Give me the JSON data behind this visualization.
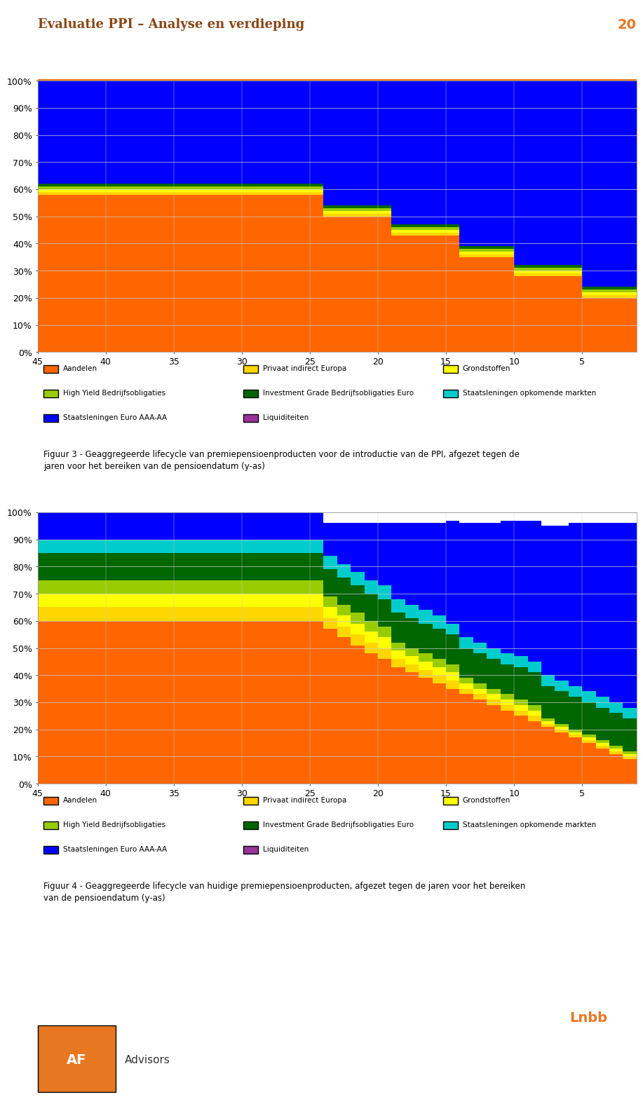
{
  "title": "Evaluatie PPI – Analyse en verdieping",
  "page_num": "20",
  "title_color": "#8B4513",
  "header_line_color": "#E87722",
  "x_values": [
    45,
    44,
    43,
    42,
    41,
    40,
    39,
    38,
    37,
    36,
    35,
    34,
    33,
    32,
    31,
    30,
    29,
    28,
    27,
    26,
    25,
    24,
    23,
    22,
    21,
    20,
    19,
    18,
    17,
    16,
    15,
    14,
    13,
    12,
    11,
    10,
    9,
    8,
    7,
    6,
    5,
    4,
    3,
    2,
    1
  ],
  "series_colors": {
    "Aandelen": "#FF6600",
    "Privaat indirect Europa": "#FFD700",
    "Grondstoffen": "#FFFF00",
    "High Yield Bedrijfsobligaties": "#99CC00",
    "Investment Grade Bedrijfsobligaties Euro": "#006600",
    "Staatsleningen opkomende markten": "#00CCCC",
    "Staatsleningen Euro AAA-AA": "#0000FF",
    "Liquiditeiten": "#993399"
  },
  "chart1": {
    "title": "Figuur 3 - Geaggregeerde lifecycle van premiepensioenproducten voor de introductie van de PPI, afgezet tegen de jaren voor het bereiken van de pensioendatum (y-as)",
    "Aandelen": [
      0.58,
      0.58,
      0.58,
      0.58,
      0.58,
      0.58,
      0.58,
      0.58,
      0.58,
      0.58,
      0.58,
      0.58,
      0.58,
      0.58,
      0.58,
      0.58,
      0.58,
      0.58,
      0.58,
      0.58,
      0.58,
      0.5,
      0.5,
      0.5,
      0.5,
      0.5,
      0.43,
      0.43,
      0.43,
      0.43,
      0.43,
      0.35,
      0.35,
      0.35,
      0.35,
      0.28,
      0.28,
      0.28,
      0.28,
      0.28,
      0.2,
      0.2,
      0.2,
      0.2,
      0.11
    ],
    "Privaat indirect Europa": [
      0.01,
      0.01,
      0.01,
      0.01,
      0.01,
      0.01,
      0.01,
      0.01,
      0.01,
      0.01,
      0.01,
      0.01,
      0.01,
      0.01,
      0.01,
      0.01,
      0.01,
      0.01,
      0.01,
      0.01,
      0.01,
      0.01,
      0.01,
      0.01,
      0.01,
      0.01,
      0.01,
      0.01,
      0.01,
      0.01,
      0.01,
      0.01,
      0.01,
      0.01,
      0.01,
      0.01,
      0.01,
      0.01,
      0.01,
      0.01,
      0.01,
      0.01,
      0.01,
      0.01,
      0.01
    ],
    "Grondstoffen": [
      0.01,
      0.01,
      0.01,
      0.01,
      0.01,
      0.01,
      0.01,
      0.01,
      0.01,
      0.01,
      0.01,
      0.01,
      0.01,
      0.01,
      0.01,
      0.01,
      0.01,
      0.01,
      0.01,
      0.01,
      0.01,
      0.01,
      0.01,
      0.01,
      0.01,
      0.01,
      0.01,
      0.01,
      0.01,
      0.01,
      0.01,
      0.01,
      0.01,
      0.01,
      0.01,
      0.01,
      0.01,
      0.01,
      0.01,
      0.01,
      0.01,
      0.01,
      0.01,
      0.01,
      0.01
    ],
    "High Yield Bedrijfsobligaties": [
      0.01,
      0.01,
      0.01,
      0.01,
      0.01,
      0.01,
      0.01,
      0.01,
      0.01,
      0.01,
      0.01,
      0.01,
      0.01,
      0.01,
      0.01,
      0.01,
      0.01,
      0.01,
      0.01,
      0.01,
      0.01,
      0.01,
      0.01,
      0.01,
      0.01,
      0.01,
      0.01,
      0.01,
      0.01,
      0.01,
      0.01,
      0.01,
      0.01,
      0.01,
      0.01,
      0.01,
      0.01,
      0.01,
      0.01,
      0.01,
      0.01,
      0.01,
      0.01,
      0.01,
      0.01
    ],
    "Investment Grade Bedrijfsobligaties Euro": [
      0.01,
      0.01,
      0.01,
      0.01,
      0.01,
      0.01,
      0.01,
      0.01,
      0.01,
      0.01,
      0.01,
      0.01,
      0.01,
      0.01,
      0.01,
      0.01,
      0.01,
      0.01,
      0.01,
      0.01,
      0.01,
      0.01,
      0.01,
      0.01,
      0.01,
      0.01,
      0.01,
      0.01,
      0.01,
      0.01,
      0.01,
      0.01,
      0.01,
      0.01,
      0.01,
      0.01,
      0.01,
      0.01,
      0.01,
      0.01,
      0.01,
      0.01,
      0.01,
      0.01,
      0.01
    ],
    "Staatsleningen opkomende markten": [
      0.0,
      0.0,
      0.0,
      0.0,
      0.0,
      0.0,
      0.0,
      0.0,
      0.0,
      0.0,
      0.0,
      0.0,
      0.0,
      0.0,
      0.0,
      0.0,
      0.0,
      0.0,
      0.0,
      0.0,
      0.0,
      0.0,
      0.0,
      0.0,
      0.0,
      0.0,
      0.0,
      0.0,
      0.0,
      0.0,
      0.0,
      0.0,
      0.0,
      0.0,
      0.0,
      0.0,
      0.0,
      0.0,
      0.0,
      0.0,
      0.0,
      0.0,
      0.0,
      0.0,
      0.0
    ],
    "Staatsleningen Euro AAA-AA": [
      0.38,
      0.38,
      0.38,
      0.38,
      0.38,
      0.38,
      0.38,
      0.38,
      0.38,
      0.38,
      0.38,
      0.38,
      0.38,
      0.38,
      0.38,
      0.38,
      0.38,
      0.38,
      0.38,
      0.38,
      0.38,
      0.46,
      0.46,
      0.46,
      0.46,
      0.46,
      0.53,
      0.53,
      0.53,
      0.53,
      0.53,
      0.61,
      0.61,
      0.61,
      0.61,
      0.68,
      0.68,
      0.68,
      0.68,
      0.68,
      0.76,
      0.76,
      0.76,
      0.76,
      0.84
    ],
    "Liquiditeiten": [
      0.0,
      0.0,
      0.0,
      0.0,
      0.0,
      0.0,
      0.0,
      0.0,
      0.0,
      0.0,
      0.0,
      0.0,
      0.0,
      0.0,
      0.0,
      0.0,
      0.0,
      0.0,
      0.0,
      0.0,
      0.0,
      0.0,
      0.0,
      0.0,
      0.0,
      0.0,
      0.0,
      0.0,
      0.0,
      0.0,
      0.0,
      0.0,
      0.0,
      0.0,
      0.0,
      0.0,
      0.0,
      0.0,
      0.0,
      0.0,
      0.0,
      0.0,
      0.0,
      0.0,
      0.04
    ]
  },
  "chart2": {
    "title": "Figuur 4 - Geaggregeerde lifecycle van huidige premiepensioenproducten, afgezet tegen de jaren voor het bereiken van de pensioendatum (y-as)",
    "Aandelen": [
      0.6,
      0.6,
      0.6,
      0.6,
      0.6,
      0.6,
      0.6,
      0.6,
      0.6,
      0.6,
      0.6,
      0.6,
      0.6,
      0.6,
      0.6,
      0.6,
      0.6,
      0.6,
      0.6,
      0.6,
      0.6,
      0.57,
      0.54,
      0.51,
      0.48,
      0.46,
      0.43,
      0.41,
      0.39,
      0.37,
      0.35,
      0.33,
      0.31,
      0.29,
      0.27,
      0.25,
      0.23,
      0.21,
      0.19,
      0.17,
      0.15,
      0.13,
      0.11,
      0.09,
      0.07
    ],
    "Privaat indirect Europa": [
      0.05,
      0.05,
      0.05,
      0.05,
      0.05,
      0.05,
      0.05,
      0.05,
      0.05,
      0.05,
      0.05,
      0.05,
      0.05,
      0.05,
      0.05,
      0.05,
      0.05,
      0.05,
      0.05,
      0.05,
      0.05,
      0.04,
      0.04,
      0.04,
      0.04,
      0.04,
      0.03,
      0.03,
      0.03,
      0.03,
      0.03,
      0.02,
      0.02,
      0.02,
      0.02,
      0.02,
      0.02,
      0.01,
      0.01,
      0.01,
      0.01,
      0.01,
      0.01,
      0.01,
      0.0
    ],
    "Grondstoffen": [
      0.05,
      0.05,
      0.05,
      0.05,
      0.05,
      0.05,
      0.05,
      0.05,
      0.05,
      0.05,
      0.05,
      0.05,
      0.05,
      0.05,
      0.05,
      0.05,
      0.05,
      0.05,
      0.05,
      0.05,
      0.05,
      0.04,
      0.04,
      0.04,
      0.04,
      0.04,
      0.03,
      0.03,
      0.03,
      0.03,
      0.03,
      0.02,
      0.02,
      0.02,
      0.02,
      0.02,
      0.02,
      0.01,
      0.01,
      0.01,
      0.01,
      0.01,
      0.01,
      0.01,
      0.0
    ],
    "High Yield Bedrijfsobligaties": [
      0.05,
      0.05,
      0.05,
      0.05,
      0.05,
      0.05,
      0.05,
      0.05,
      0.05,
      0.05,
      0.05,
      0.05,
      0.05,
      0.05,
      0.05,
      0.05,
      0.05,
      0.05,
      0.05,
      0.05,
      0.05,
      0.04,
      0.04,
      0.04,
      0.04,
      0.04,
      0.03,
      0.03,
      0.03,
      0.03,
      0.03,
      0.02,
      0.02,
      0.02,
      0.02,
      0.02,
      0.02,
      0.01,
      0.01,
      0.01,
      0.01,
      0.01,
      0.01,
      0.01,
      0.0
    ],
    "Investment Grade Bedrijfsobligaties Euro": [
      0.1,
      0.1,
      0.1,
      0.1,
      0.1,
      0.1,
      0.1,
      0.1,
      0.1,
      0.1,
      0.1,
      0.1,
      0.1,
      0.1,
      0.1,
      0.1,
      0.1,
      0.1,
      0.1,
      0.1,
      0.1,
      0.1,
      0.1,
      0.1,
      0.1,
      0.1,
      0.11,
      0.11,
      0.11,
      0.11,
      0.11,
      0.11,
      0.11,
      0.11,
      0.11,
      0.12,
      0.12,
      0.12,
      0.12,
      0.12,
      0.12,
      0.12,
      0.12,
      0.12,
      0.13
    ],
    "Staatsleningen opkomende markten": [
      0.05,
      0.05,
      0.05,
      0.05,
      0.05,
      0.05,
      0.05,
      0.05,
      0.05,
      0.05,
      0.05,
      0.05,
      0.05,
      0.05,
      0.05,
      0.05,
      0.05,
      0.05,
      0.05,
      0.05,
      0.05,
      0.05,
      0.05,
      0.05,
      0.05,
      0.05,
      0.05,
      0.05,
      0.05,
      0.05,
      0.04,
      0.04,
      0.04,
      0.04,
      0.04,
      0.04,
      0.04,
      0.04,
      0.04,
      0.04,
      0.04,
      0.04,
      0.04,
      0.04,
      0.03
    ],
    "Staatsleningen Euro AAA-AA": [
      0.1,
      0.1,
      0.1,
      0.1,
      0.1,
      0.1,
      0.1,
      0.1,
      0.1,
      0.1,
      0.1,
      0.1,
      0.1,
      0.1,
      0.1,
      0.1,
      0.1,
      0.1,
      0.1,
      0.1,
      0.1,
      0.12,
      0.15,
      0.18,
      0.21,
      0.23,
      0.28,
      0.3,
      0.32,
      0.34,
      0.38,
      0.42,
      0.44,
      0.46,
      0.49,
      0.5,
      0.52,
      0.55,
      0.57,
      0.6,
      0.62,
      0.64,
      0.66,
      0.68,
      0.72
    ],
    "Liquiditeiten": [
      0.0,
      0.0,
      0.0,
      0.0,
      0.0,
      0.0,
      0.0,
      0.0,
      0.0,
      0.0,
      0.0,
      0.0,
      0.0,
      0.0,
      0.0,
      0.0,
      0.0,
      0.0,
      0.0,
      0.0,
      0.0,
      0.0,
      0.0,
      0.0,
      0.0,
      0.0,
      0.0,
      0.0,
      0.0,
      0.0,
      0.0,
      0.0,
      0.0,
      0.0,
      0.0,
      0.0,
      0.0,
      0.0,
      0.0,
      0.0,
      0.0,
      0.0,
      0.0,
      0.0,
      0.0
    ]
  },
  "legend_labels": [
    "Aandelen",
    "Privaat indirect Europa",
    "Grondstoffen",
    "High Yield Bedrijfsobligaties",
    "Investment Grade Bedrijfsobligaties Euro",
    "Staatsleningen opkomende markten",
    "Staatsleningen Euro AAA-AA",
    "Liquiditeiten"
  ],
  "figure3_caption": "Figuur 3 - Geaggregeerde lifecycle van premiepensioenproducten voor de introductie van de PPI, afgezet tegen de\njaren voor het bereiken van de pensioendatum (y-as)",
  "figure4_caption": "Figuur 4 - Geaggregeerde lifecycle van huidige premiepensioenproducten, afgezet tegen de jaren voor het bereiken\nvan de pensioendatum (y-as)",
  "footer_text_left": "AF",
  "footer_text_right": "Advisors",
  "bg_color": "#FFFFFF",
  "chart_bg": "#FFFFFF",
  "grid_color": "#CCCCCC"
}
